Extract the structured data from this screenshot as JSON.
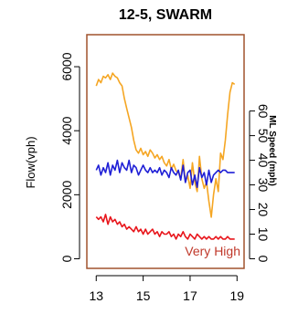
{
  "chart_data": {
    "type": "line",
    "title": "12-5, SWARM",
    "xlabel": "",
    "ylabel": "Flow(vph)",
    "y2label": "ML Speed (mph)",
    "annotation": "Very High",
    "xlim": [
      12.6,
      19.3
    ],
    "ylim": [
      -300,
      7000
    ],
    "y2lim": [
      -3.9,
      91
    ],
    "x_ticks": [
      13,
      15,
      17,
      19
    ],
    "y_ticks": [
      0,
      2000,
      4000,
      6000
    ],
    "y2_ticks": [
      0,
      10,
      20,
      30,
      40,
      50,
      60
    ],
    "grid": false,
    "frame_color": "#a0522d",
    "annotation_color": "#c0392b",
    "series": [
      {
        "axis": "left",
        "color": "#f5a623",
        "x": [
          13.0,
          13.1,
          13.2,
          13.3,
          13.4,
          13.5,
          13.6,
          13.7,
          13.8,
          13.9,
          14.0,
          14.1,
          14.2,
          14.3,
          14.4,
          14.5,
          14.6,
          14.7,
          14.8,
          14.9,
          15.0,
          15.1,
          15.2,
          15.3,
          15.4,
          15.5,
          15.6,
          15.7,
          15.8,
          15.9,
          16.0,
          16.1,
          16.2,
          16.3,
          16.4,
          16.5,
          16.6,
          16.7,
          16.8,
          16.9,
          17.0,
          17.1,
          17.2,
          17.3,
          17.4,
          17.5,
          17.6,
          17.7,
          17.8,
          17.9,
          18.0,
          18.1,
          18.2,
          18.3,
          18.4,
          18.5,
          18.6,
          18.7,
          18.8,
          18.9
        ],
        "values": [
          5400,
          5600,
          5500,
          5700,
          5650,
          5750,
          5600,
          5800,
          5700,
          5650,
          5500,
          5400,
          5000,
          4700,
          4400,
          4100,
          3700,
          3400,
          3300,
          3450,
          3250,
          3350,
          3200,
          3400,
          3300,
          3150,
          3250,
          3100,
          3200,
          3000,
          2900,
          3100,
          2800,
          2950,
          2750,
          2700,
          2500,
          3100,
          2400,
          2600,
          2200,
          3000,
          2400,
          2100,
          3200,
          2500,
          2200,
          2400,
          1800,
          1300,
          2000,
          2500,
          2100,
          3300,
          3100,
          3700,
          4500,
          5200,
          5500,
          5450
        ]
      },
      {
        "axis": "right",
        "color": "#1f1fd6",
        "x": [
          13.0,
          13.1,
          13.2,
          13.3,
          13.4,
          13.5,
          13.6,
          13.7,
          13.8,
          13.9,
          14.0,
          14.1,
          14.2,
          14.3,
          14.4,
          14.5,
          14.6,
          14.7,
          14.8,
          14.9,
          15.0,
          15.1,
          15.2,
          15.3,
          15.4,
          15.5,
          15.6,
          15.7,
          15.8,
          15.9,
          16.0,
          16.1,
          16.2,
          16.3,
          16.4,
          16.5,
          16.6,
          16.7,
          16.8,
          16.9,
          17.0,
          17.1,
          17.2,
          17.3,
          17.4,
          17.5,
          17.6,
          17.7,
          17.8,
          17.9,
          18.0,
          18.1,
          18.2,
          18.3,
          18.4,
          18.5,
          18.6,
          18.7,
          18.8,
          18.9
        ],
        "values": [
          36,
          38,
          34,
          37,
          35,
          39,
          34,
          38,
          36,
          40,
          35,
          39,
          37,
          36,
          40,
          35,
          38,
          37,
          34,
          36,
          38,
          36,
          35,
          37,
          35,
          36,
          35,
          37,
          34,
          36,
          35,
          33,
          37,
          35,
          34,
          36,
          32,
          38,
          31,
          35,
          36,
          30,
          34,
          29,
          37,
          33,
          35,
          30,
          36,
          31,
          34,
          35,
          36,
          35,
          36,
          36,
          35,
          35,
          35,
          35
        ]
      },
      {
        "axis": "right",
        "color": "#e8161c",
        "x": [
          13.0,
          13.1,
          13.2,
          13.3,
          13.4,
          13.5,
          13.6,
          13.7,
          13.8,
          13.9,
          14.0,
          14.1,
          14.2,
          14.3,
          14.4,
          14.5,
          14.6,
          14.7,
          14.8,
          14.9,
          15.0,
          15.1,
          15.2,
          15.3,
          15.4,
          15.5,
          15.6,
          15.7,
          15.8,
          15.9,
          16.0,
          16.1,
          16.2,
          16.3,
          16.4,
          16.5,
          16.6,
          16.7,
          16.8,
          16.9,
          17.0,
          17.1,
          17.2,
          17.3,
          17.4,
          17.5,
          17.6,
          17.7,
          17.8,
          17.9,
          18.0,
          18.1,
          18.2,
          18.3,
          18.4,
          18.5,
          18.6,
          18.7,
          18.8,
          18.9
        ],
        "values": [
          17,
          16,
          17,
          15,
          18,
          14,
          17,
          15,
          16,
          14,
          15,
          13,
          14,
          12,
          13,
          12,
          11,
          13,
          11,
          12,
          10,
          12,
          10,
          11,
          12,
          10,
          11,
          9,
          11,
          10,
          10,
          11,
          9,
          10,
          8,
          10,
          9,
          11,
          9,
          8,
          10,
          9,
          8,
          10,
          9,
          8,
          9,
          8,
          9,
          8,
          8,
          9,
          8,
          9,
          8,
          8,
          9,
          8,
          8,
          8
        ]
      }
    ]
  }
}
